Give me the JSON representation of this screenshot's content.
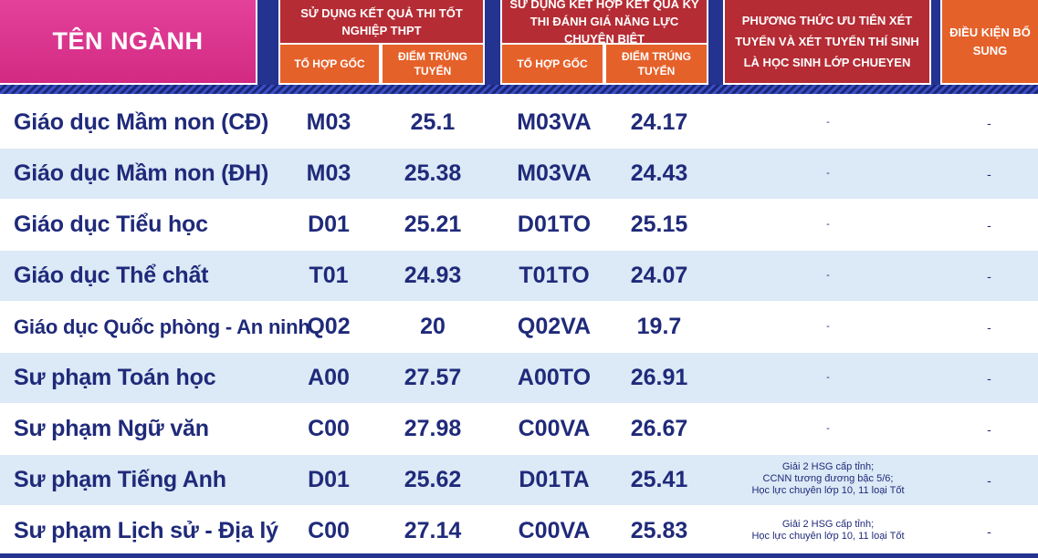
{
  "header": {
    "ten_nganh": "TÊN NGÀNH",
    "thpt_group": "SỬ DỤNG KẾT QUẢ THI TỐT NGHIỆP THPT",
    "dgnl_group": "SỬ DỤNG KẾT HỢP KẾT QUẢ KỲ THI ĐÁNH GIÁ NĂNG LỰC CHUYÊN BIỆT",
    "to_hop_goc": "TỔ HỢP GỐC",
    "diem_trung_tuyen": "ĐIỂM TRÚNG TUYỂN",
    "uu_tien": "PHƯƠNG THỨC ƯU TIÊN XÉT TUYỂN VÀ XÉT TUYỂN THÍ SINH LÀ HỌC SINH LỚP CHUEYEN",
    "dieu_kien": "ĐIỀU KIỆN BỔ SUNG"
  },
  "rows": [
    {
      "name": "Giáo dục Mầm non  (CĐ)",
      "code1": "M03",
      "score1": "25.1",
      "code2": "M03VA",
      "score2": "24.17",
      "uu_tien": "-",
      "dieu_kien": "-"
    },
    {
      "name": "Giáo dục Mầm non  (ĐH)",
      "code1": "M03",
      "score1": "25.38",
      "code2": "M03VA",
      "score2": "24.43",
      "uu_tien": "-",
      "dieu_kien": "-"
    },
    {
      "name": "Giáo dục Tiểu học",
      "code1": "D01",
      "score1": "25.21",
      "code2": "D01TO",
      "score2": "25.15",
      "uu_tien": "-",
      "dieu_kien": "-"
    },
    {
      "name": "Giáo dục Thể chất",
      "code1": "T01",
      "score1": "24.93",
      "code2": "T01TO",
      "score2": "24.07",
      "uu_tien": "-",
      "dieu_kien": "-"
    },
    {
      "name": "Giáo dục Quốc phòng - An ninh",
      "code1": "Q02",
      "score1": "20",
      "code2": "Q02VA",
      "score2": "19.7",
      "uu_tien": "-",
      "dieu_kien": "-"
    },
    {
      "name": "Sư phạm Toán học",
      "code1": "A00",
      "score1": "27.57",
      "code2": "A00TO",
      "score2": "26.91",
      "uu_tien": "-",
      "dieu_kien": "-"
    },
    {
      "name": "Sư phạm Ngữ văn",
      "code1": "C00",
      "score1": "27.98",
      "code2": "C00VA",
      "score2": "26.67",
      "uu_tien": "-",
      "dieu_kien": "-"
    },
    {
      "name": "Sư phạm Tiếng Anh",
      "code1": "D01",
      "score1": "25.62",
      "code2": "D01TA",
      "score2": "25.41",
      "uu_tien": "Giải 2 HSG cấp tỉnh;\nCCNN tương đương bậc 5/6;\nHọc lực chuyên lớp 10, 11 loại Tốt",
      "dieu_kien": "-"
    },
    {
      "name": "Sư phạm Lịch sử - Địa lý",
      "code1": "C00",
      "score1": "27.14",
      "code2": "C00VA",
      "score2": "25.83",
      "uu_tien": "Giải 2 HSG cấp tỉnh;\nHọc lực chuyên lớp 10, 11 loại Tốt",
      "dieu_kien": "-"
    }
  ]
}
